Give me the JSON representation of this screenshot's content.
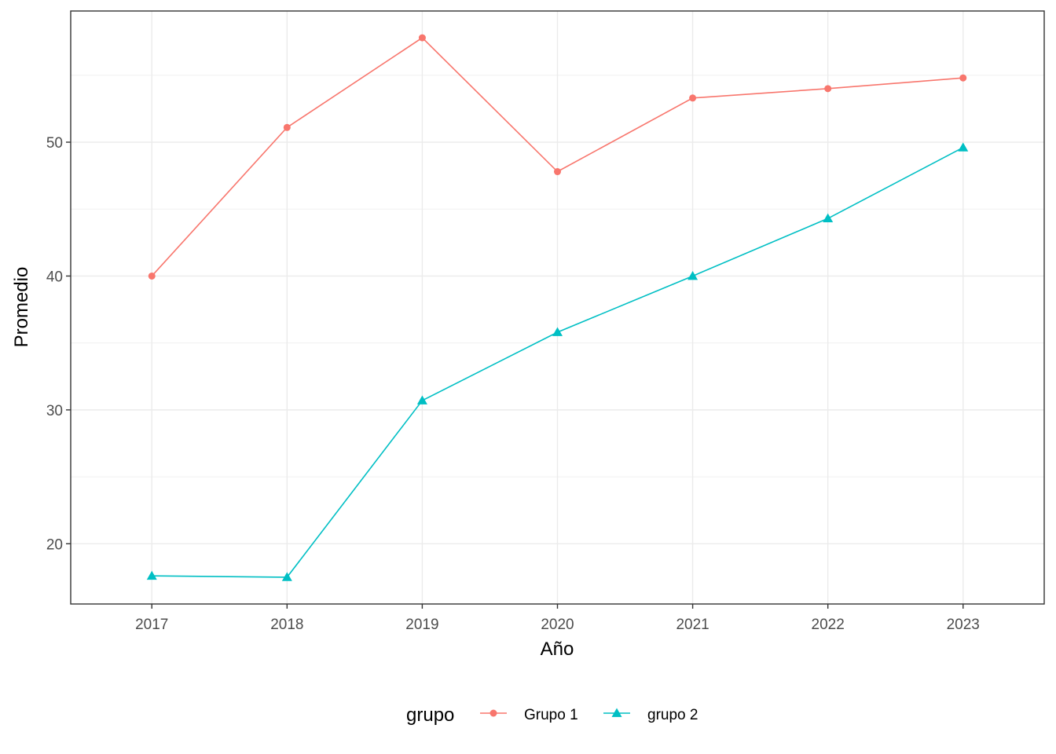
{
  "chart_data": {
    "type": "line",
    "title": "",
    "xlabel": "Año",
    "ylabel": "Promedio",
    "categories": [
      "2017",
      "2018",
      "2019",
      "2020",
      "2021",
      "2022",
      "2023"
    ],
    "ylim": [
      15.5,
      59.8
    ],
    "y_ticks_major": [
      20,
      30,
      40,
      50
    ],
    "y_ticks_minor": [
      25,
      35,
      45,
      55
    ],
    "grid": true,
    "legend": {
      "title": "grupo",
      "position": "bottom"
    },
    "series": [
      {
        "name": "Grupo 1",
        "color": "#F8766D",
        "marker": "circle",
        "values": [
          40.0,
          51.1,
          57.8,
          47.8,
          53.3,
          54.0,
          54.8
        ]
      },
      {
        "name": "grupo 2",
        "color": "#00BFC4",
        "marker": "triangle",
        "values": [
          17.6,
          17.5,
          30.7,
          35.8,
          40.0,
          44.3,
          49.6
        ]
      }
    ]
  }
}
